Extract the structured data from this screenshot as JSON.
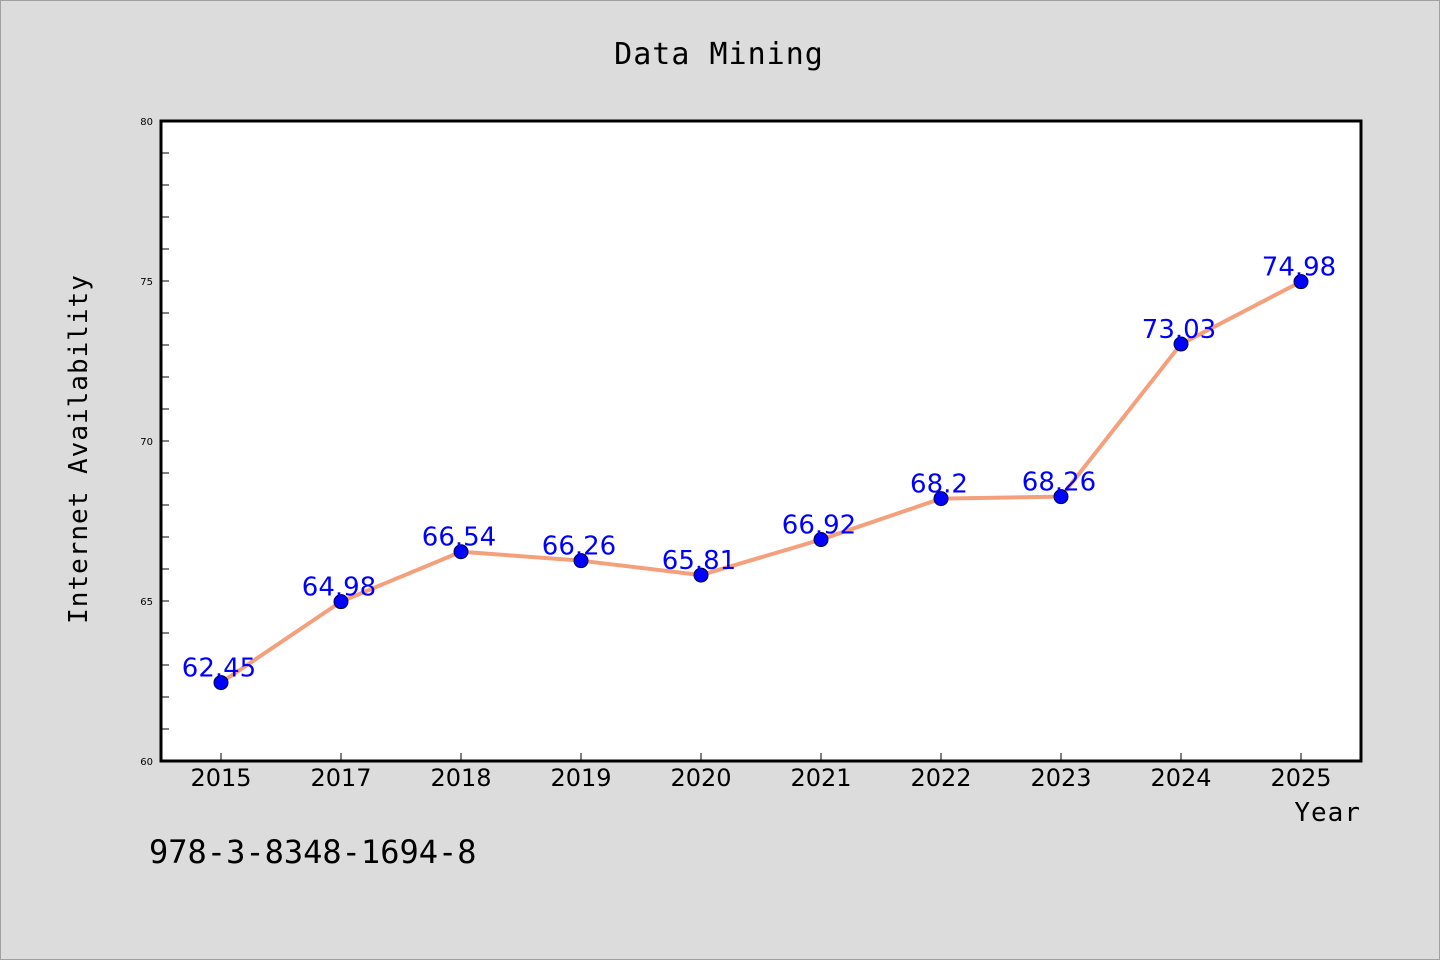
{
  "chart_data": {
    "type": "line",
    "title": "Data Mining",
    "xlabel": "Year",
    "ylabel": "Internet Availability",
    "categories": [
      "2015",
      "2017",
      "2018",
      "2019",
      "2020",
      "2021",
      "2022",
      "2023",
      "2024",
      "2025"
    ],
    "series": [
      {
        "values": [
          62.45,
          64.98,
          66.54,
          66.26,
          65.81,
          66.92,
          68.2,
          68.26,
          73.03,
          74.98
        ],
        "data_labels": [
          "62.45",
          "64.98",
          "66.54",
          "66.26",
          "65.81",
          "66.92",
          "68.2",
          "68.26",
          "73.03",
          "74.98"
        ],
        "line_color": "#f4a07c",
        "marker_color": "#0000ff"
      }
    ],
    "ylim": [
      60,
      80
    ],
    "y_ticks": [
      60,
      65,
      70,
      75,
      80
    ],
    "y_tick_labels": [
      "60",
      "65",
      "70",
      "75",
      "80"
    ],
    "y_minor_step": 1,
    "grid": false,
    "legend": "none"
  },
  "footer": {
    "isbn": "978-3-8348-1694-8"
  },
  "colors": {
    "background": "#dcdcdc",
    "plot_background": "#ffffff",
    "line": "#f4a07c",
    "marker": "#0000ff",
    "data_label": "#0000ff"
  }
}
